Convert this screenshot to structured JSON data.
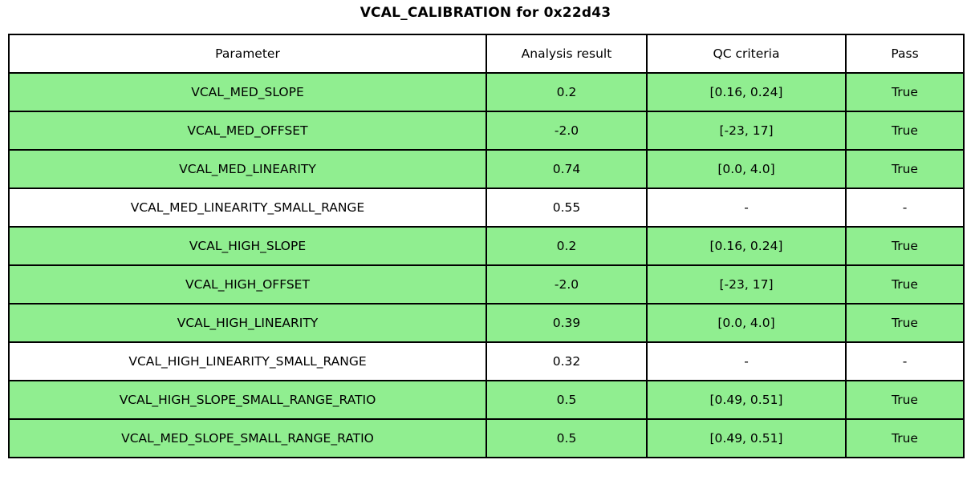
{
  "title": "VCAL_CALIBRATION for 0x22d43",
  "colors": {
    "pass_row_green": "#90ee90",
    "neutral_row_white": "#ffffff",
    "border": "#000000",
    "text": "#000000"
  },
  "chart_data": {
    "type": "table",
    "title": "VCAL_CALIBRATION for 0x22d43",
    "columns": [
      "Parameter",
      "Analysis result",
      "QC criteria",
      "Pass"
    ],
    "rows": [
      {
        "parameter": "VCAL_MED_SLOPE",
        "result": "0.2",
        "qc": "[0.16, 0.24]",
        "pass": "True",
        "highlight": true
      },
      {
        "parameter": "VCAL_MED_OFFSET",
        "result": "-2.0",
        "qc": "[-23, 17]",
        "pass": "True",
        "highlight": true
      },
      {
        "parameter": "VCAL_MED_LINEARITY",
        "result": "0.74",
        "qc": "[0.0, 4.0]",
        "pass": "True",
        "highlight": true
      },
      {
        "parameter": "VCAL_MED_LINEARITY_SMALL_RANGE",
        "result": "0.55",
        "qc": "-",
        "pass": "-",
        "highlight": false
      },
      {
        "parameter": "VCAL_HIGH_SLOPE",
        "result": "0.2",
        "qc": "[0.16, 0.24]",
        "pass": "True",
        "highlight": true
      },
      {
        "parameter": "VCAL_HIGH_OFFSET",
        "result": "-2.0",
        "qc": "[-23, 17]",
        "pass": "True",
        "highlight": true
      },
      {
        "parameter": "VCAL_HIGH_LINEARITY",
        "result": "0.39",
        "qc": "[0.0, 4.0]",
        "pass": "True",
        "highlight": true
      },
      {
        "parameter": "VCAL_HIGH_LINEARITY_SMALL_RANGE",
        "result": "0.32",
        "qc": "-",
        "pass": "-",
        "highlight": false
      },
      {
        "parameter": "VCAL_HIGH_SLOPE_SMALL_RANGE_RATIO",
        "result": "0.5",
        "qc": "[0.49, 0.51]",
        "pass": "True",
        "highlight": true
      },
      {
        "parameter": "VCAL_MED_SLOPE_SMALL_RANGE_RATIO",
        "result": "0.5",
        "qc": "[0.49, 0.51]",
        "pass": "True",
        "highlight": true
      }
    ]
  }
}
